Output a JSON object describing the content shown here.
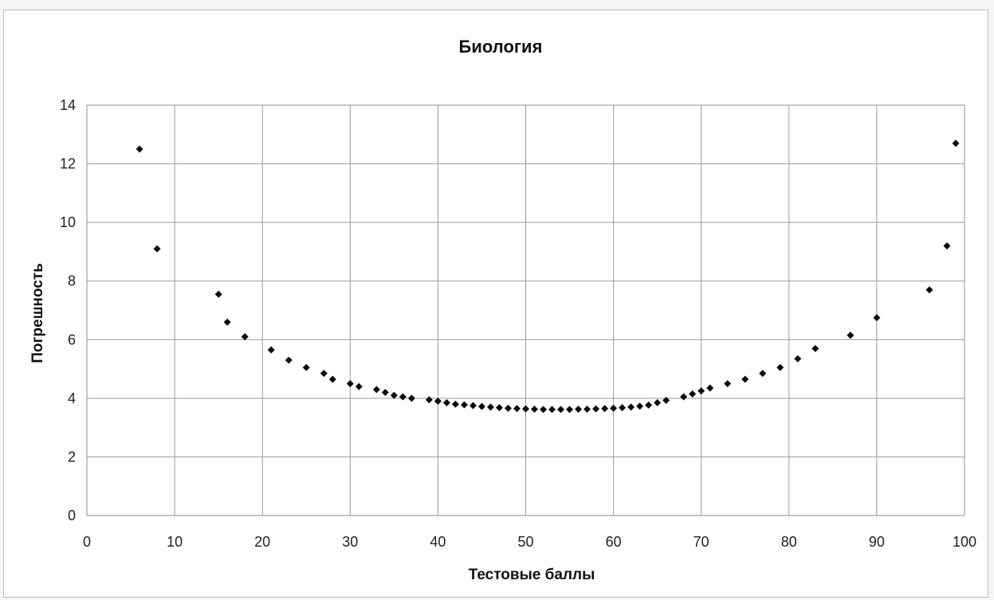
{
  "chart_data": {
    "type": "scatter",
    "title": "Биология",
    "xlabel": "Тестовые баллы",
    "ylabel": "Погрешность",
    "xlim": [
      0,
      100
    ],
    "ylim": [
      0,
      14
    ],
    "xticks": [
      0,
      10,
      20,
      30,
      40,
      50,
      60,
      70,
      80,
      90,
      100
    ],
    "yticks": [
      0,
      2,
      4,
      6,
      8,
      10,
      12,
      14
    ],
    "grid": true,
    "legend": "none",
    "marker": "diamond",
    "series": [
      {
        "color": "#0a0a0a",
        "points": [
          [
            6,
            12.5
          ],
          [
            8,
            9.1
          ],
          [
            15,
            7.55
          ],
          [
            16,
            6.6
          ],
          [
            18,
            6.1
          ],
          [
            21,
            5.65
          ],
          [
            23,
            5.3
          ],
          [
            25,
            5.05
          ],
          [
            27,
            4.85
          ],
          [
            28,
            4.65
          ],
          [
            30,
            4.5
          ],
          [
            31,
            4.4
          ],
          [
            33,
            4.3
          ],
          [
            34,
            4.2
          ],
          [
            35,
            4.1
          ],
          [
            36,
            4.05
          ],
          [
            37,
            4.0
          ],
          [
            39,
            3.95
          ],
          [
            40,
            3.9
          ],
          [
            41,
            3.85
          ],
          [
            42,
            3.8
          ],
          [
            43,
            3.78
          ],
          [
            44,
            3.75
          ],
          [
            45,
            3.72
          ],
          [
            46,
            3.7
          ],
          [
            47,
            3.68
          ],
          [
            48,
            3.66
          ],
          [
            49,
            3.65
          ],
          [
            50,
            3.64
          ],
          [
            51,
            3.63
          ],
          [
            52,
            3.62
          ],
          [
            53,
            3.62
          ],
          [
            54,
            3.62
          ],
          [
            55,
            3.62
          ],
          [
            56,
            3.63
          ],
          [
            57,
            3.63
          ],
          [
            58,
            3.64
          ],
          [
            59,
            3.65
          ],
          [
            60,
            3.66
          ],
          [
            61,
            3.68
          ],
          [
            62,
            3.7
          ],
          [
            63,
            3.73
          ],
          [
            64,
            3.77
          ],
          [
            65,
            3.85
          ],
          [
            66,
            3.93
          ],
          [
            68,
            4.05
          ],
          [
            69,
            4.15
          ],
          [
            70,
            4.25
          ],
          [
            71,
            4.35
          ],
          [
            73,
            4.5
          ],
          [
            75,
            4.65
          ],
          [
            77,
            4.85
          ],
          [
            79,
            5.05
          ],
          [
            81,
            5.35
          ],
          [
            83,
            5.7
          ],
          [
            87,
            6.15
          ],
          [
            90,
            6.75
          ],
          [
            96,
            7.7
          ],
          [
            98,
            9.2
          ],
          [
            99,
            12.7
          ]
        ]
      }
    ]
  }
}
